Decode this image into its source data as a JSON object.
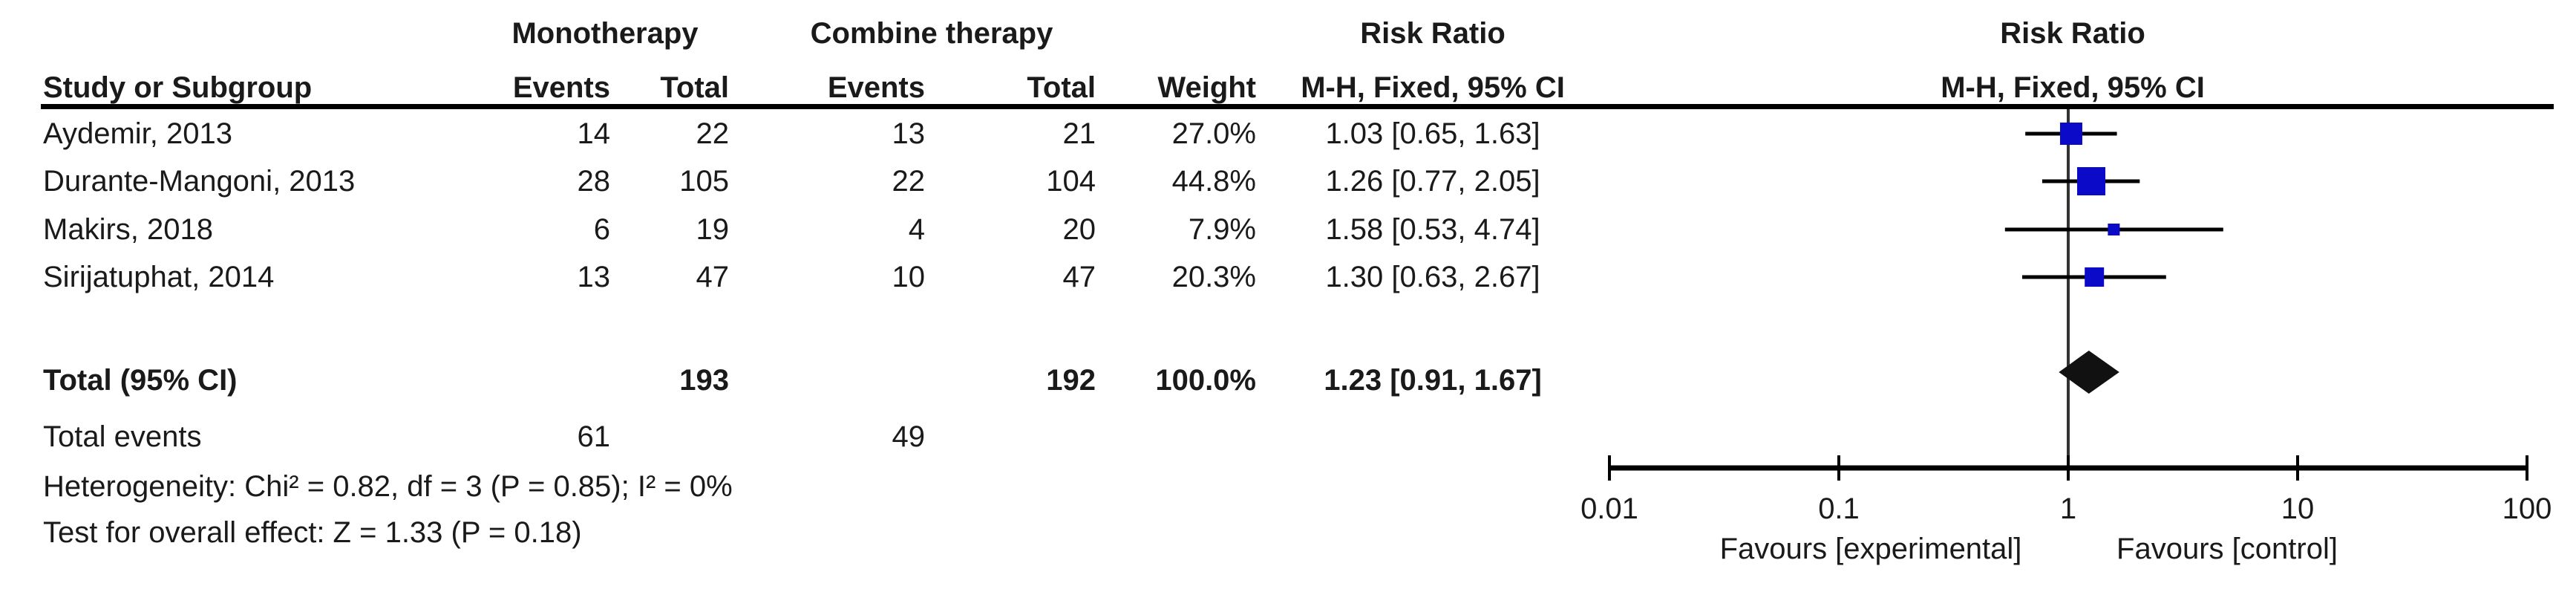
{
  "table": {
    "header": {
      "group1": "Monotherapy",
      "group2": "Combine therapy",
      "rr_title": "Risk Ratio",
      "rr_subtitle": "M-H, Fixed, 95% CI",
      "study": "Study or Subgroup",
      "events": "Events",
      "total": "Total",
      "weight": "Weight"
    },
    "rows": [
      {
        "study": "Aydemir, 2013",
        "e1": "14",
        "t1": "22",
        "e2": "13",
        "t2": "21",
        "weight": "27.0%",
        "rr": "1.03 [0.65, 1.63]"
      },
      {
        "study": "Durante-Mangoni, 2013",
        "e1": "28",
        "t1": "105",
        "e2": "22",
        "t2": "104",
        "weight": "44.8%",
        "rr": "1.26 [0.77, 2.05]"
      },
      {
        "study": "Makirs, 2018",
        "e1": "6",
        "t1": "19",
        "e2": "4",
        "t2": "20",
        "weight": "7.9%",
        "rr": "1.58 [0.53, 4.74]"
      },
      {
        "study": "Sirijatuphat, 2014",
        "e1": "13",
        "t1": "47",
        "e2": "10",
        "t2": "47",
        "weight": "20.3%",
        "rr": "1.30 [0.63, 2.67]"
      }
    ],
    "total_row": {
      "label": "Total (95% CI)",
      "t1": "193",
      "t2": "192",
      "weight": "100.0%",
      "rr": "1.23 [0.91, 1.67]"
    },
    "total_events": {
      "label": "Total events",
      "e1": "61",
      "e2": "49"
    },
    "heterogeneity": "Heterogeneity: Chi² = 0.82, df = 3 (P = 0.85); I² = 0%",
    "overall_effect": "Test for overall effect: Z = 1.33 (P = 0.18)"
  },
  "chart_data": {
    "type": "scatter",
    "subtype": "forest-plot",
    "title": "Risk Ratio",
    "subtitle": "M-H, Fixed, 95% CI",
    "x_scale": "log10",
    "xlim": [
      0.01,
      100
    ],
    "x_ticks": [
      0.01,
      0.1,
      1,
      10,
      100
    ],
    "x_tick_labels": [
      "0.01",
      "0.1",
      "1",
      "10",
      "100"
    ],
    "null_line_value": 1,
    "favours_left": "Favours [experimental]",
    "favours_right": "Favours [control]",
    "studies": [
      {
        "name": "Aydemir, 2013",
        "rr": 1.03,
        "ci_low": 0.65,
        "ci_high": 1.63,
        "weight_pct": 27.0
      },
      {
        "name": "Durante-Mangoni, 2013",
        "rr": 1.26,
        "ci_low": 0.77,
        "ci_high": 2.05,
        "weight_pct": 44.8
      },
      {
        "name": "Makirs, 2018",
        "rr": 1.58,
        "ci_low": 0.53,
        "ci_high": 4.74,
        "weight_pct": 7.9
      },
      {
        "name": "Sirijatuphat, 2014",
        "rr": 1.3,
        "ci_low": 0.63,
        "ci_high": 2.67,
        "weight_pct": 20.3
      }
    ],
    "total": {
      "rr": 1.23,
      "ci_low": 0.91,
      "ci_high": 1.67
    },
    "marker_color": "#0a0ac8",
    "diamond_color": "#111111",
    "line_color": "#000000"
  }
}
